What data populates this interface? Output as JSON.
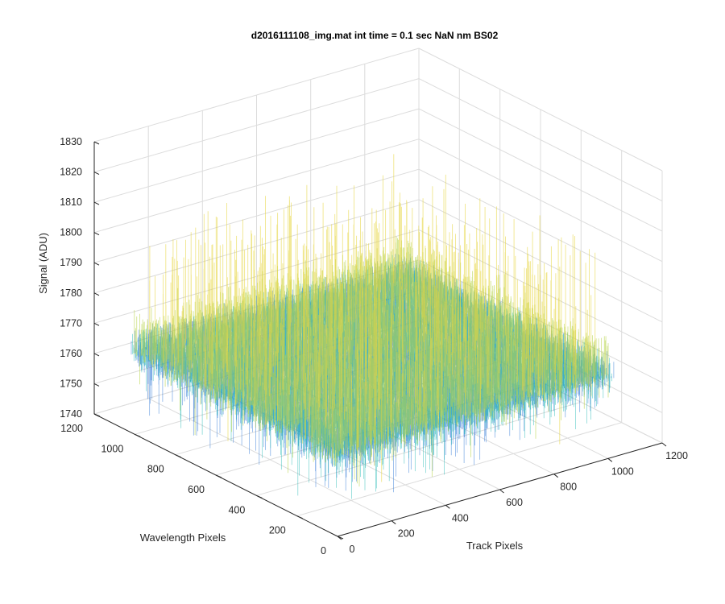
{
  "chart_data": {
    "type": "surface",
    "title": "d2016111108_img.mat int time = 0.1 sec  NaN nm BS02",
    "xlabel": "Track Pixels",
    "ylabel": "Wavelength Pixels",
    "zlabel": "Signal (ADU)",
    "xlim": [
      0,
      1200
    ],
    "ylim": [
      0,
      1200
    ],
    "zlim": [
      1740,
      1830
    ],
    "x_ticks": [
      "0",
      "200",
      "400",
      "600",
      "800",
      "1000",
      "1200"
    ],
    "y_ticks": [
      "0",
      "200",
      "400",
      "600",
      "800",
      "1000",
      "1200"
    ],
    "z_ticks": [
      "1740",
      "1750",
      "1760",
      "1770",
      "1780",
      "1790",
      "1800",
      "1810",
      "1820",
      "1830"
    ],
    "x_data_range": [
      1,
      1024
    ],
    "y_data_range": [
      1,
      1024
    ],
    "signal_baseline": 1766,
    "signal_range": [
      1745,
      1815
    ],
    "grid": true,
    "colormap": "parula",
    "colors": {
      "low": "#0a5fd0",
      "mid": "#19b6b1",
      "high": "#b8d44a",
      "peak": "#e6d640"
    }
  }
}
